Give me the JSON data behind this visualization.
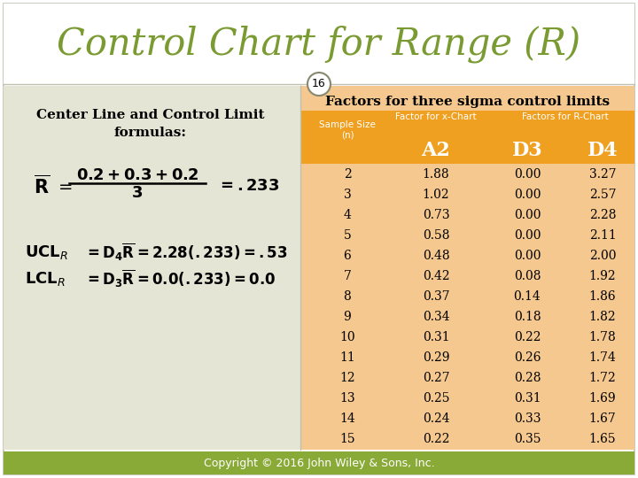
{
  "title": "Control Chart for Range (R)",
  "slide_number": "16",
  "title_color": "#7a9a32",
  "bg_color": "#ffffff",
  "left_panel_bg": "#e8e8d8",
  "right_panel_bg": "#f5c890",
  "right_header_bg": "#f0a020",
  "footer_bg": "#8aaa38",
  "footer_text": "Copyright © 2016 John Wiley & Sons, Inc.",
  "left_title": "Center Line and Control Limit\nformulas:",
  "table_super_header": "Factors for three sigma control limits",
  "subheader1": "Factor for x-Chart",
  "subheader2": "Factors for R-Chart",
  "col_main": [
    "Sample Size\n(n)",
    "A2",
    "D3",
    "D4"
  ],
  "table_data": [
    [
      2,
      1.88,
      0.0,
      3.27
    ],
    [
      3,
      1.02,
      0.0,
      2.57
    ],
    [
      4,
      0.73,
      0.0,
      2.28
    ],
    [
      5,
      0.58,
      0.0,
      2.11
    ],
    [
      6,
      0.48,
      0.0,
      2.0
    ],
    [
      7,
      0.42,
      0.08,
      1.92
    ],
    [
      8,
      0.37,
      0.14,
      1.86
    ],
    [
      9,
      0.34,
      0.18,
      1.82
    ],
    [
      10,
      0.31,
      0.22,
      1.78
    ],
    [
      11,
      0.29,
      0.26,
      1.74
    ],
    [
      12,
      0.27,
      0.28,
      1.72
    ],
    [
      13,
      0.25,
      0.31,
      1.69
    ],
    [
      14,
      0.24,
      0.33,
      1.67
    ],
    [
      15,
      0.22,
      0.35,
      1.65
    ]
  ]
}
